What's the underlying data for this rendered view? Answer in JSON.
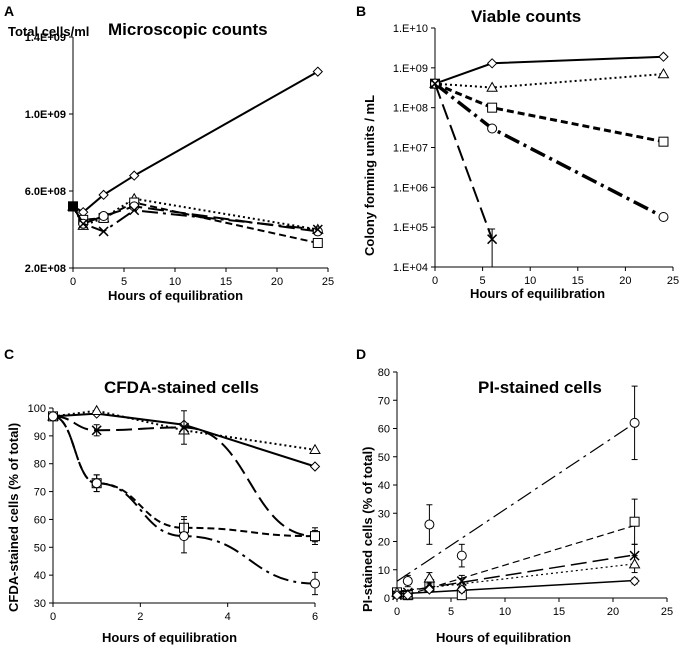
{
  "chart_data": [
    {
      "panel": "A",
      "type": "line",
      "title": "Microscopic counts",
      "ylabel": "Total cells/ml",
      "xlabel": "Hours of equilibration",
      "ylim": [
        200000000,
        1400000000
      ],
      "xlim": [
        0,
        25
      ],
      "yticks": [
        "2.0E+08",
        "6.0E+08",
        "1.0E+09",
        "1.4E+09"
      ],
      "yticks_values": [
        200000000,
        600000000,
        1000000000,
        1400000000
      ],
      "xticks": [
        "0",
        "5",
        "10",
        "15",
        "20",
        "25"
      ],
      "xticks_values": [
        0,
        5,
        10,
        15,
        20,
        25
      ],
      "ylog": false,
      "series": [
        {
          "name": "diamond",
          "marker": "diamond",
          "dash": "solid",
          "width": 2,
          "x": [
            0,
            1,
            3,
            6,
            24
          ],
          "y": [
            520000000,
            490000000,
            580000000,
            680000000,
            1220000000
          ]
        },
        {
          "name": "triangle",
          "marker": "triangle",
          "dash": "dotted",
          "width": 2,
          "x": [
            0,
            1,
            3,
            6,
            24
          ],
          "y": [
            520000000,
            420000000,
            460000000,
            560000000,
            400000000
          ]
        },
        {
          "name": "square",
          "marker": "square",
          "dash": "dashed",
          "width": 2,
          "x": [
            0,
            1,
            3,
            6,
            24
          ],
          "y": [
            520000000,
            450000000,
            460000000,
            540000000,
            330000000
          ]
        },
        {
          "name": "circle",
          "marker": "circle",
          "dash": "longdash",
          "width": 2,
          "x": [
            0,
            1,
            3,
            6,
            24
          ],
          "y": [
            520000000,
            430000000,
            470000000,
            520000000,
            390000000
          ]
        },
        {
          "name": "cross",
          "marker": "cross",
          "dash": "dashdot",
          "width": 2,
          "x": [
            0,
            1,
            3,
            6,
            24
          ],
          "y": [
            520000000,
            430000000,
            390000000,
            500000000,
            400000000
          ]
        }
      ]
    },
    {
      "panel": "B",
      "type": "line",
      "title": "Viable counts",
      "ylabel": "Colony forming units / mL",
      "xlabel": "Hours of equilibration",
      "ylim": [
        10000,
        10000000000
      ],
      "xlim": [
        0,
        25
      ],
      "ylog": true,
      "yticks": [
        "1.E+04",
        "1.E+05",
        "1.E+06",
        "1.E+07",
        "1.E+08",
        "1.E+09",
        "1.E+10"
      ],
      "yticks_values": [
        10000,
        100000,
        1000000,
        10000000,
        100000000,
        1000000000,
        10000000000
      ],
      "xticks": [
        "0",
        "5",
        "10",
        "15",
        "20",
        "25"
      ],
      "xticks_values": [
        0,
        5,
        10,
        15,
        20,
        25
      ],
      "series": [
        {
          "name": "diamond",
          "marker": "diamond",
          "dash": "solid",
          "width": 2,
          "x": [
            0,
            6,
            24
          ],
          "y": [
            400000000,
            1300000000,
            1900000000
          ]
        },
        {
          "name": "triangle",
          "marker": "triangle",
          "dash": "dotted",
          "width": 2,
          "x": [
            0,
            6,
            24
          ],
          "y": [
            400000000,
            320000000,
            700000000
          ]
        },
        {
          "name": "square",
          "marker": "square",
          "dash": "dashed",
          "width": 3,
          "x": [
            0,
            6,
            24
          ],
          "y": [
            400000000,
            100000000,
            14000000
          ]
        },
        {
          "name": "circle",
          "marker": "circle",
          "dash": "dashdot",
          "width": 3.5,
          "x": [
            0,
            6,
            24
          ],
          "y": [
            400000000,
            30000000,
            180000
          ]
        },
        {
          "name": "cross",
          "marker": "cross",
          "dash": "longdash",
          "width": 2,
          "x": [
            0,
            6
          ],
          "y": [
            400000000,
            50000
          ],
          "err": [
            0,
            40000
          ]
        }
      ]
    },
    {
      "panel": "C",
      "type": "line",
      "title": "CFDA-stained cells",
      "ylabel": "CFDA-stained cells (% of total)",
      "xlabel": "Hours of equilibration",
      "ylim": [
        30,
        100
      ],
      "xlim": [
        0,
        6
      ],
      "ylog": false,
      "yticks": [
        "30",
        "40",
        "50",
        "60",
        "70",
        "80",
        "90",
        "100"
      ],
      "yticks_values": [
        30,
        40,
        50,
        60,
        70,
        80,
        90,
        100
      ],
      "xticks": [
        "0",
        "2",
        "4",
        "6"
      ],
      "xticks_values": [
        0,
        2,
        4,
        6
      ],
      "series": [
        {
          "name": "diamond",
          "marker": "diamond",
          "dash": "solid",
          "width": 2,
          "x": [
            0,
            1,
            3,
            6
          ],
          "y": [
            97,
            98,
            94,
            79
          ]
        },
        {
          "name": "triangle",
          "marker": "triangle",
          "dash": "dotted",
          "width": 2,
          "x": [
            0,
            1,
            3,
            6
          ],
          "y": [
            97,
            99,
            92,
            85
          ]
        },
        {
          "name": "cross",
          "marker": "cross",
          "dash": "longdash",
          "width": 2,
          "x": [
            0,
            1,
            3,
            6
          ],
          "y": [
            97,
            92,
            93,
            54
          ],
          "err": [
            1,
            2,
            6,
            2
          ]
        },
        {
          "name": "square",
          "marker": "square",
          "dash": "dashed",
          "width": 2,
          "x": [
            0,
            1,
            3,
            6
          ],
          "y": [
            97,
            73,
            57,
            54
          ],
          "err": [
            1,
            3,
            4,
            3
          ]
        },
        {
          "name": "circle",
          "marker": "circle",
          "dash": "dashdot",
          "width": 2,
          "x": [
            0,
            1,
            3,
            6
          ],
          "y": [
            97,
            73,
            54,
            37
          ],
          "err": [
            1,
            3,
            6,
            4
          ]
        }
      ]
    },
    {
      "panel": "D",
      "type": "line",
      "title": "PI-stained cells",
      "ylabel": "PI-stained cells (% of total)",
      "xlabel": "Hours of equilibration",
      "ylim": [
        0,
        80
      ],
      "xlim": [
        0,
        25
      ],
      "ylog": false,
      "yticks": [
        "0",
        "10",
        "20",
        "30",
        "40",
        "50",
        "60",
        "70",
        "80"
      ],
      "yticks_values": [
        0,
        10,
        20,
        30,
        40,
        50,
        60,
        70,
        80
      ],
      "xticks": [
        "0",
        "5",
        "10",
        "15",
        "20",
        "25"
      ],
      "xticks_values": [
        0,
        5,
        10,
        15,
        20,
        25
      ],
      "series": [
        {
          "name": "circle",
          "marker": "circle",
          "dash": "dashdot",
          "width": 1.2,
          "x": [
            0,
            1,
            3,
            6,
            22
          ],
          "y": [
            2,
            6,
            26,
            15,
            62
          ],
          "err": [
            1,
            2,
            7,
            4,
            13
          ],
          "trend": true
        },
        {
          "name": "square",
          "marker": "square",
          "dash": "dashed",
          "width": 1.2,
          "x": [
            0,
            1,
            3,
            6,
            22
          ],
          "y": [
            2,
            1,
            4,
            1,
            27
          ],
          "err": [
            0,
            0,
            1,
            0,
            8
          ],
          "trend": true
        },
        {
          "name": "cross",
          "marker": "cross",
          "dash": "longdash",
          "width": 1.5,
          "x": [
            0,
            1,
            3,
            6,
            22
          ],
          "y": [
            1,
            2,
            5,
            6,
            15
          ],
          "err": [
            0,
            0,
            1,
            2,
            4
          ],
          "trend": true
        },
        {
          "name": "triangle",
          "marker": "triangle",
          "dash": "dotted",
          "width": 1.2,
          "x": [
            0,
            1,
            3,
            6,
            22
          ],
          "y": [
            2,
            1,
            7,
            4,
            12
          ],
          "err": [
            0,
            0,
            2,
            1,
            3
          ],
          "trend": true
        },
        {
          "name": "diamond",
          "marker": "diamond",
          "dash": "solid",
          "width": 1.5,
          "x": [
            0,
            1,
            3,
            6,
            22
          ],
          "y": [
            1,
            1,
            3,
            3,
            6
          ],
          "err": [
            0,
            0,
            1,
            1,
            1
          ],
          "trend": true
        }
      ]
    }
  ]
}
